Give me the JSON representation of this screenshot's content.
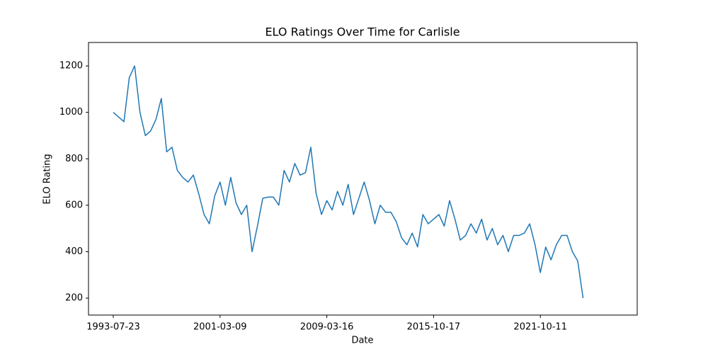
{
  "chart_data": {
    "type": "line",
    "title": "ELO Ratings Over Time for Carlisle",
    "xlabel": "Date",
    "ylabel": "ELO Rating",
    "categories": [
      "1993-07-23",
      null,
      null,
      null,
      null,
      null,
      null,
      null,
      null,
      null,
      null,
      null,
      null,
      null,
      null,
      null,
      null,
      null,
      null,
      null,
      "2001-03-09",
      null,
      null,
      null,
      null,
      null,
      null,
      null,
      null,
      null,
      null,
      null,
      null,
      null,
      null,
      null,
      null,
      null,
      null,
      null,
      "2009-03-16",
      null,
      null,
      null,
      null,
      null,
      null,
      null,
      null,
      null,
      null,
      null,
      null,
      null,
      null,
      null,
      null,
      null,
      null,
      null,
      "2015-10-17",
      null,
      null,
      null,
      null,
      null,
      null,
      null,
      null,
      null,
      null,
      null,
      null,
      null,
      null,
      null,
      null,
      null,
      null,
      null,
      "2021-10-11",
      null,
      null,
      null,
      null,
      null,
      null,
      null,
      null
    ],
    "series": [
      {
        "color": "#1f77b4",
        "values": [
          1000,
          980,
          960,
          1150,
          1200,
          1000,
          900,
          920,
          970,
          1060,
          830,
          850,
          750,
          720,
          700,
          730,
          650,
          560,
          520,
          640,
          700,
          600,
          720,
          610,
          560,
          600,
          400,
          510,
          630,
          635,
          635,
          600,
          750,
          700,
          780,
          730,
          740,
          850,
          650,
          560,
          620,
          580,
          660,
          600,
          690,
          560,
          630,
          700,
          620,
          520,
          600,
          570,
          570,
          530,
          460,
          430,
          480,
          420,
          560,
          520,
          540,
          560,
          510,
          620,
          540,
          450,
          470,
          520,
          480,
          540,
          450,
          500,
          430,
          470,
          400,
          470,
          470,
          480,
          520,
          430,
          310,
          420,
          365,
          430,
          470,
          470,
          400,
          360,
          200
        ]
      }
    ],
    "ylim": [
      127,
      1301
    ],
    "yticks": [
      200,
      400,
      600,
      800,
      1000,
      1200
    ]
  }
}
